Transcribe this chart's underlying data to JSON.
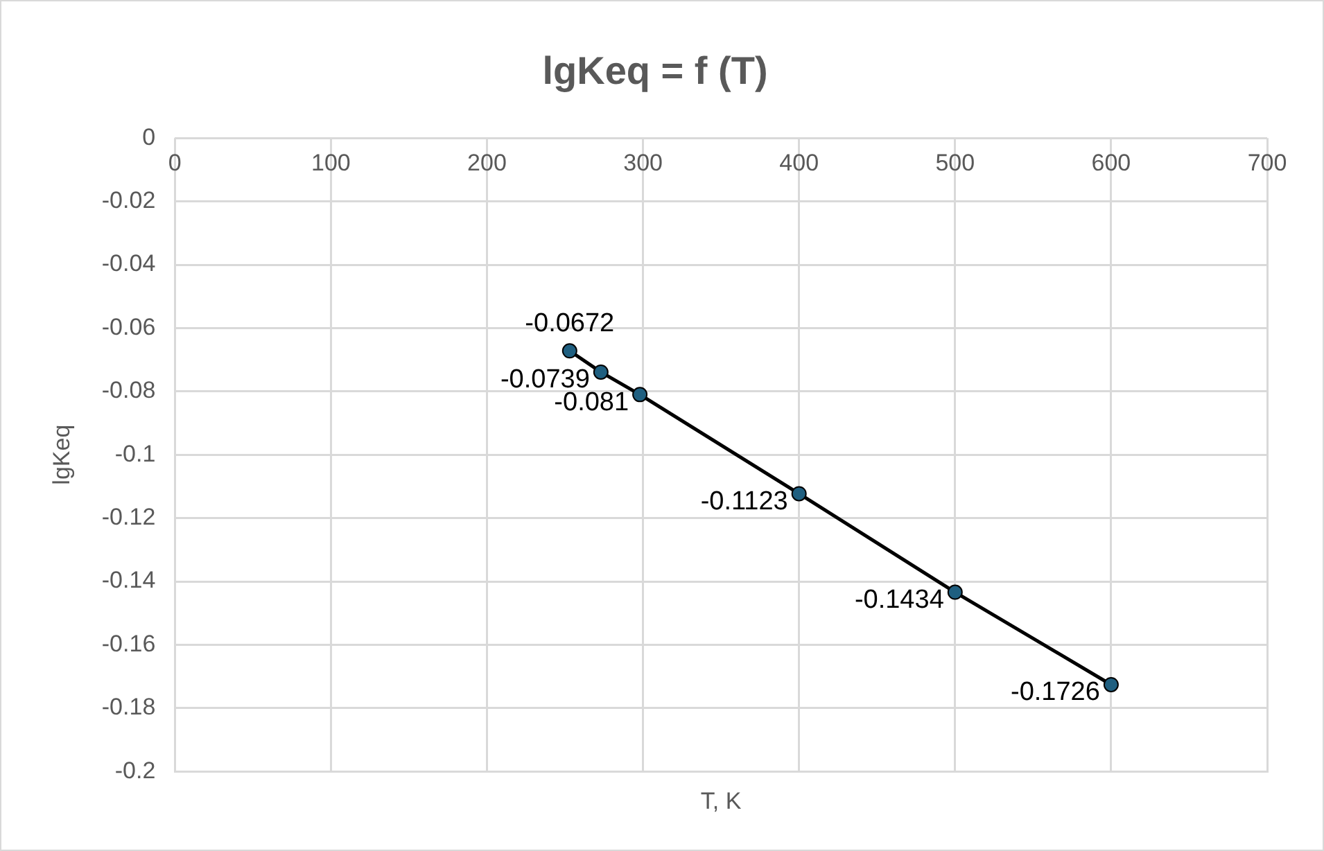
{
  "chart_data": {
    "type": "line",
    "title": "lgKeq = f (T)",
    "xlabel": "T, K",
    "ylabel": "lgKeq",
    "x": [
      253,
      273,
      298,
      400,
      500,
      600
    ],
    "series": [
      {
        "color": "#1f5f80",
        "values": [
          -0.0672,
          -0.0739,
          -0.081,
          -0.1123,
          -0.1434,
          -0.1726
        ]
      }
    ],
    "xlim": [
      0,
      700
    ],
    "xticks": [
      0,
      100,
      200,
      300,
      400,
      500,
      600,
      700
    ],
    "ylim": [
      -0.2,
      0
    ],
    "yticks": [
      0,
      -0.02,
      -0.04,
      -0.06,
      -0.08,
      -0.1,
      -0.12,
      -0.14,
      -0.16,
      -0.18,
      -0.2
    ],
    "grid": true,
    "legend": false,
    "marker": "circle",
    "line_style": "solid",
    "data_labels": true
  }
}
